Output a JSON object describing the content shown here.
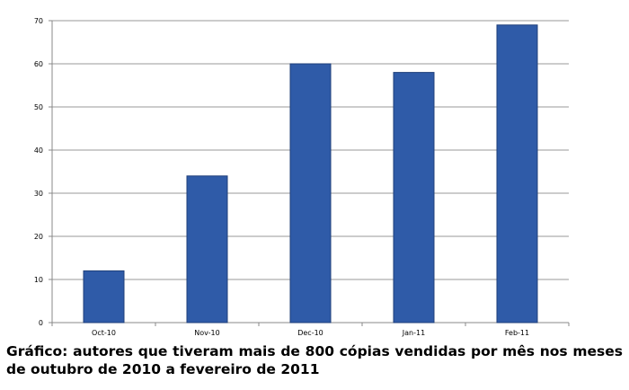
{
  "caption": "Gráfico: autores que tiveram mais de 800 cópias vendidas por mês nos meses de outubro de 2010 a fevereiro de 2011",
  "chart_data": {
    "type": "bar",
    "categories": [
      "Oct-10",
      "Nov-10",
      "Dec-10",
      "Jan-11",
      "Feb-11"
    ],
    "values": [
      12,
      34,
      60,
      58,
      69
    ],
    "ylim": [
      0,
      70
    ],
    "yticks": [
      0,
      10,
      20,
      30,
      40,
      50,
      60,
      70
    ],
    "grid": true,
    "bar_color": "#2f5ba8",
    "bar_edge_color": "#1f3f7a",
    "gridline_color": "#999999"
  }
}
